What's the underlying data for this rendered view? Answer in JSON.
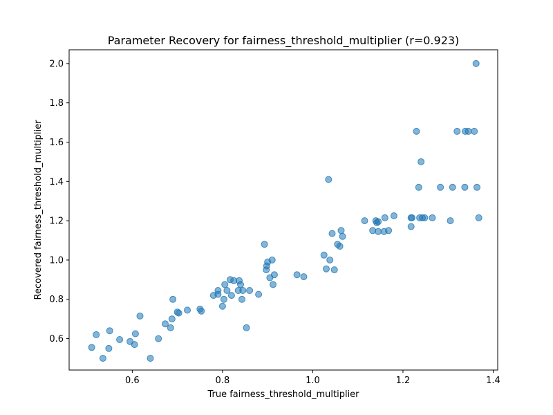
{
  "chart_data": {
    "type": "scatter",
    "title": "Parameter Recovery for fairness_threshold_multiplier (r=0.923)",
    "xlabel": "True fairness_threshold_multiplier",
    "ylabel": "Recovered fairness_threshold_multiplier",
    "xlim": [
      0.46,
      1.41
    ],
    "ylim": [
      0.44,
      2.07
    ],
    "xticks": [
      0.6,
      0.8,
      1.0,
      1.2,
      1.4
    ],
    "xtick_labels": [
      "0.6",
      "0.8",
      "1.0",
      "1.2",
      "1.4"
    ],
    "yticks": [
      0.6,
      0.8,
      1.0,
      1.2,
      1.4,
      1.6,
      1.8,
      2.0
    ],
    "ytick_labels": [
      "0.6",
      "0.8",
      "1.0",
      "1.2",
      "1.4",
      "1.6",
      "1.8",
      "2.0"
    ],
    "grid": false,
    "marker_color": "#1f77b4",
    "marker_alpha": 0.55,
    "points": [
      {
        "x": 0.51,
        "y": 0.555
      },
      {
        "x": 0.52,
        "y": 0.62
      },
      {
        "x": 0.535,
        "y": 0.5
      },
      {
        "x": 0.548,
        "y": 0.55
      },
      {
        "x": 0.55,
        "y": 0.64
      },
      {
        "x": 0.572,
        "y": 0.595
      },
      {
        "x": 0.595,
        "y": 0.585
      },
      {
        "x": 0.605,
        "y": 0.57
      },
      {
        "x": 0.607,
        "y": 0.625
      },
      {
        "x": 0.617,
        "y": 0.715
      },
      {
        "x": 0.64,
        "y": 0.5
      },
      {
        "x": 0.658,
        "y": 0.6
      },
      {
        "x": 0.673,
        "y": 0.675
      },
      {
        "x": 0.685,
        "y": 0.655
      },
      {
        "x": 0.688,
        "y": 0.7
      },
      {
        "x": 0.69,
        "y": 0.8
      },
      {
        "x": 0.7,
        "y": 0.735
      },
      {
        "x": 0.703,
        "y": 0.73
      },
      {
        "x": 0.722,
        "y": 0.745
      },
      {
        "x": 0.75,
        "y": 0.75
      },
      {
        "x": 0.753,
        "y": 0.74
      },
      {
        "x": 0.78,
        "y": 0.82
      },
      {
        "x": 0.79,
        "y": 0.845
      },
      {
        "x": 0.79,
        "y": 0.825
      },
      {
        "x": 0.8,
        "y": 0.765
      },
      {
        "x": 0.803,
        "y": 0.8
      },
      {
        "x": 0.805,
        "y": 0.875
      },
      {
        "x": 0.81,
        "y": 0.845
      },
      {
        "x": 0.817,
        "y": 0.9
      },
      {
        "x": 0.82,
        "y": 0.82
      },
      {
        "x": 0.825,
        "y": 0.895
      },
      {
        "x": 0.835,
        "y": 0.845
      },
      {
        "x": 0.837,
        "y": 0.895
      },
      {
        "x": 0.84,
        "y": 0.875
      },
      {
        "x": 0.843,
        "y": 0.8
      },
      {
        "x": 0.845,
        "y": 0.845
      },
      {
        "x": 0.853,
        "y": 0.655
      },
      {
        "x": 0.86,
        "y": 0.845
      },
      {
        "x": 0.88,
        "y": 0.825
      },
      {
        "x": 0.893,
        "y": 1.08
      },
      {
        "x": 0.897,
        "y": 0.95
      },
      {
        "x": 0.898,
        "y": 0.97
      },
      {
        "x": 0.9,
        "y": 0.99
      },
      {
        "x": 0.905,
        "y": 0.91
      },
      {
        "x": 0.91,
        "y": 1.0
      },
      {
        "x": 0.912,
        "y": 0.875
      },
      {
        "x": 0.915,
        "y": 0.925
      },
      {
        "x": 0.965,
        "y": 0.925
      },
      {
        "x": 0.98,
        "y": 0.915
      },
      {
        "x": 1.025,
        "y": 1.025
      },
      {
        "x": 1.03,
        "y": 0.955
      },
      {
        "x": 1.035,
        "y": 1.41
      },
      {
        "x": 1.038,
        "y": 1.0
      },
      {
        "x": 1.043,
        "y": 1.135
      },
      {
        "x": 1.048,
        "y": 0.95
      },
      {
        "x": 1.055,
        "y": 1.08
      },
      {
        "x": 1.06,
        "y": 1.07
      },
      {
        "x": 1.063,
        "y": 1.15
      },
      {
        "x": 1.066,
        "y": 1.12
      },
      {
        "x": 1.115,
        "y": 1.2
      },
      {
        "x": 1.133,
        "y": 1.15
      },
      {
        "x": 1.14,
        "y": 1.2
      },
      {
        "x": 1.142,
        "y": 1.19
      },
      {
        "x": 1.145,
        "y": 1.145
      },
      {
        "x": 1.145,
        "y": 1.195
      },
      {
        "x": 1.158,
        "y": 1.145
      },
      {
        "x": 1.16,
        "y": 1.215
      },
      {
        "x": 1.168,
        "y": 1.15
      },
      {
        "x": 1.18,
        "y": 1.225
      },
      {
        "x": 1.218,
        "y": 1.17
      },
      {
        "x": 1.218,
        "y": 1.215
      },
      {
        "x": 1.22,
        "y": 1.215
      },
      {
        "x": 1.23,
        "y": 1.655
      },
      {
        "x": 1.235,
        "y": 1.37
      },
      {
        "x": 1.237,
        "y": 1.215
      },
      {
        "x": 1.24,
        "y": 1.5
      },
      {
        "x": 1.243,
        "y": 1.215
      },
      {
        "x": 1.248,
        "y": 1.215
      },
      {
        "x": 1.265,
        "y": 1.215
      },
      {
        "x": 1.283,
        "y": 1.37
      },
      {
        "x": 1.305,
        "y": 1.2
      },
      {
        "x": 1.31,
        "y": 1.37
      },
      {
        "x": 1.32,
        "y": 1.655
      },
      {
        "x": 1.337,
        "y": 1.37
      },
      {
        "x": 1.338,
        "y": 1.655
      },
      {
        "x": 1.345,
        "y": 1.655
      },
      {
        "x": 1.358,
        "y": 1.655
      },
      {
        "x": 1.362,
        "y": 2.0
      },
      {
        "x": 1.364,
        "y": 1.37
      },
      {
        "x": 1.368,
        "y": 1.215
      }
    ]
  }
}
